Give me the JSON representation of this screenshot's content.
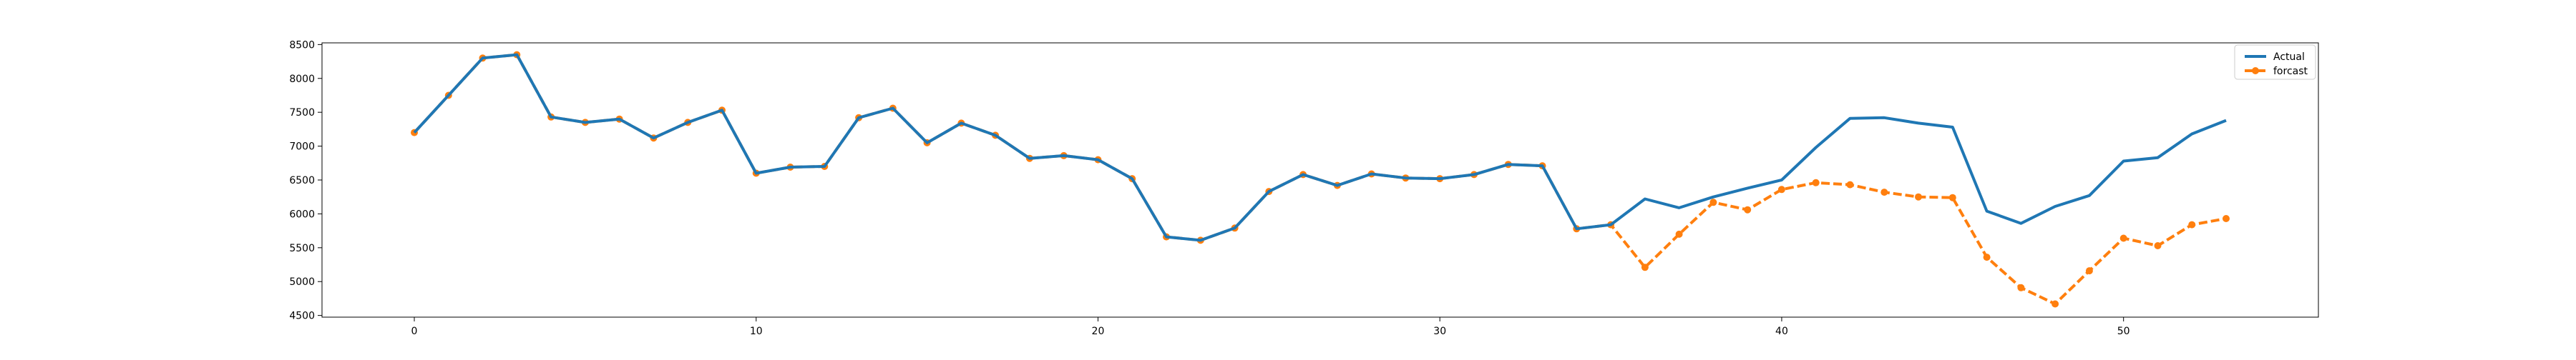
{
  "chart_data": {
    "type": "line",
    "title": "",
    "xlabel": "",
    "ylabel": "",
    "xlim": [
      -2.7,
      55.7
    ],
    "ylim": [
      4475,
      8525
    ],
    "x_ticks": [
      0,
      10,
      20,
      30,
      40,
      50
    ],
    "y_ticks": [
      4500,
      5000,
      5500,
      6000,
      6500,
      7000,
      7500,
      8000,
      8500
    ],
    "grid": false,
    "legend_position": "top-right",
    "x": [
      0,
      1,
      2,
      3,
      4,
      5,
      6,
      7,
      8,
      9,
      10,
      11,
      12,
      13,
      14,
      15,
      16,
      17,
      18,
      19,
      20,
      21,
      22,
      23,
      24,
      25,
      26,
      27,
      28,
      29,
      30,
      31,
      32,
      33,
      34,
      35,
      36,
      37,
      38,
      39,
      40,
      41,
      42,
      43,
      44,
      45,
      46,
      47,
      48,
      49,
      50,
      51,
      52,
      53
    ],
    "series": [
      {
        "name": "Actual",
        "color": "#1f77b4",
        "style": "solid",
        "marker": "none",
        "values": [
          7200,
          7750,
          8300,
          8350,
          7430,
          7350,
          7400,
          7120,
          7350,
          7530,
          6600,
          6690,
          6700,
          7420,
          7560,
          7050,
          7340,
          7160,
          6820,
          6860,
          6800,
          6520,
          5660,
          5610,
          5790,
          6330,
          6580,
          6420,
          6590,
          6530,
          6520,
          6580,
          6730,
          6710,
          5780,
          5840,
          6220,
          6090,
          6250,
          6380,
          6500,
          6980,
          7410,
          7420,
          7340,
          7280,
          6040,
          5860,
          6110,
          6270,
          6780,
          6830,
          7180,
          7380
        ]
      },
      {
        "name": "forcast",
        "color": "#ff7f0e",
        "style": "dashed",
        "marker": "circle",
        "values": [
          7200,
          7750,
          8300,
          8350,
          7430,
          7350,
          7400,
          7120,
          7350,
          7530,
          6600,
          6690,
          6700,
          7420,
          7560,
          7050,
          7340,
          7160,
          6820,
          6860,
          6800,
          6520,
          5660,
          5610,
          5790,
          6330,
          6580,
          6420,
          6590,
          6530,
          6520,
          6580,
          6730,
          6710,
          5780,
          5840,
          5210,
          5700,
          6170,
          6060,
          6360,
          6460,
          6430,
          6320,
          6250,
          6240,
          5360,
          4910,
          4670,
          5160,
          5640,
          5530,
          5840,
          5930
        ]
      }
    ]
  }
}
